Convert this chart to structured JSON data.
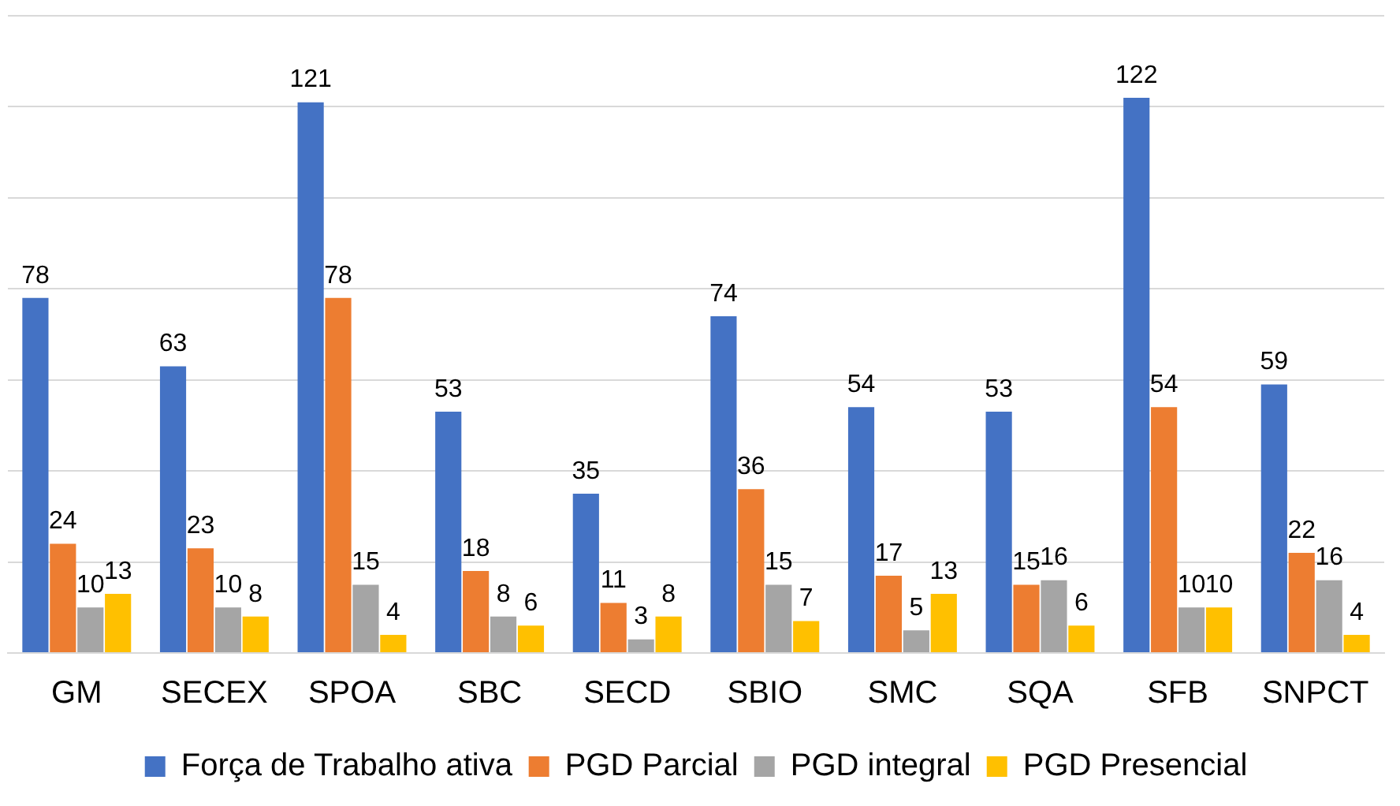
{
  "chart_data": {
    "type": "bar",
    "categories": [
      "GM",
      "SECEX",
      "SPOA",
      "SBC",
      "SECD",
      "SBIO",
      "SMC",
      "SQA",
      "SFB",
      "SNPCT"
    ],
    "series": [
      {
        "name": "Força de Trabalho ativa",
        "color": "#4472c4",
        "values": [
          78,
          63,
          121,
          53,
          35,
          74,
          54,
          53,
          122,
          59
        ]
      },
      {
        "name": "PGD Parcial",
        "color": "#ed7d31",
        "values": [
          24,
          23,
          78,
          18,
          11,
          36,
          17,
          15,
          54,
          22
        ]
      },
      {
        "name": "PGD integral",
        "color": "#a5a5a5",
        "values": [
          10,
          10,
          15,
          8,
          3,
          15,
          5,
          16,
          10,
          16
        ]
      },
      {
        "name": "PGD Presencial",
        "color": "#ffc000",
        "values": [
          13,
          8,
          4,
          6,
          8,
          7,
          13,
          6,
          10,
          4
        ]
      }
    ],
    "ylim": [
      0,
      140
    ],
    "yticks": [
      {
        "value": 0,
        "label": null
      },
      {
        "value": 20,
        "label": null
      },
      {
        "value": 40,
        "label": null
      },
      {
        "value": 60,
        "label": null
      },
      {
        "value": 80,
        "label": null
      },
      {
        "value": 100,
        "label": null
      },
      {
        "value": 120,
        "label": null
      },
      {
        "value": 140,
        "label": null
      }
    ],
    "grid": "y",
    "tick_labels": "x",
    "legend": "bottom",
    "data_labels": true
  }
}
